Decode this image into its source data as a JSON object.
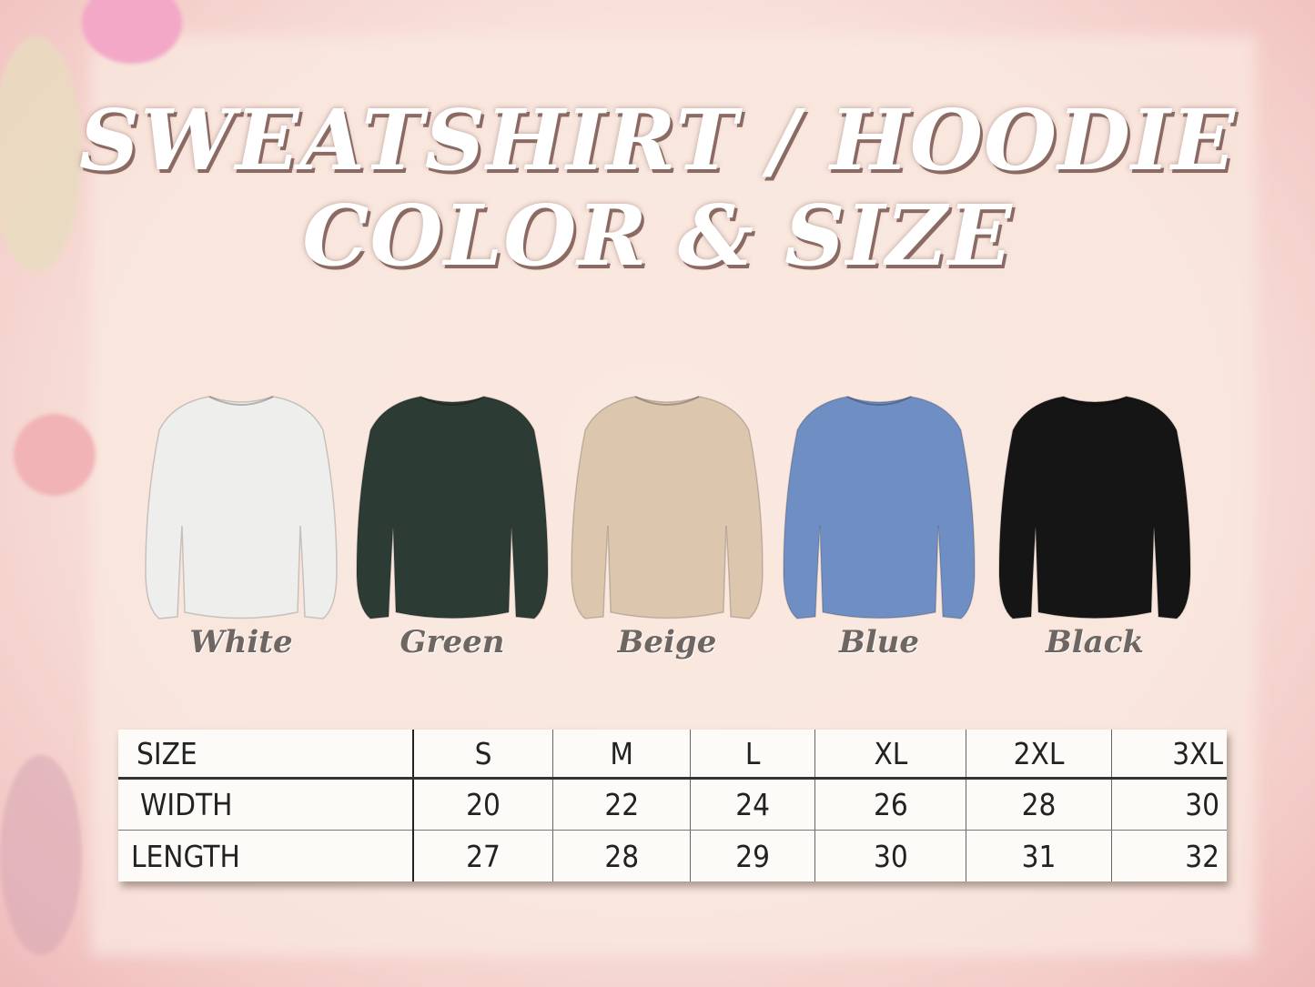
{
  "title": {
    "line1": "SWEATSHIRT / HOODIE",
    "line2": "COLOR & SIZE"
  },
  "colors": [
    {
      "label": "White",
      "hex": "#eeeeec"
    },
    {
      "label": "Green",
      "hex": "#2c3b33"
    },
    {
      "label": "Beige",
      "hex": "#dcc6ad"
    },
    {
      "label": "Blue",
      "hex": "#6f8ec4"
    },
    {
      "label": "Black",
      "hex": "#151515"
    }
  ],
  "size_table": {
    "header": [
      "SIZE",
      "S",
      "M",
      "L",
      "XL",
      "2XL",
      "3XL"
    ],
    "rows": [
      [
        "WIDTH",
        "20",
        "22",
        "24",
        "26",
        "28",
        "30"
      ],
      [
        "LENGTH",
        "27",
        "28",
        "29",
        "30",
        "31",
        "32"
      ]
    ]
  }
}
